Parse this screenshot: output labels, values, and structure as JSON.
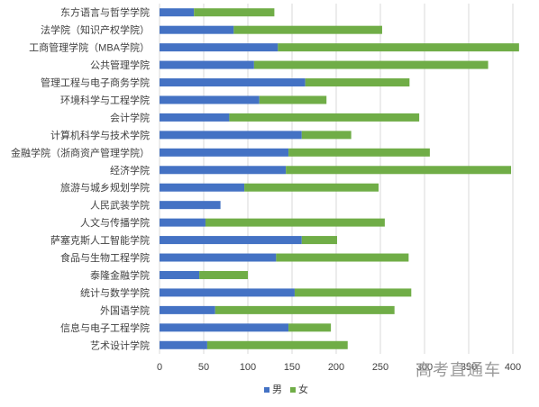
{
  "chart_data": {
    "type": "bar",
    "orientation": "horizontal",
    "stacked": true,
    "categories": [
      "东方语言与哲学学院",
      "法学院（知识产权学院）",
      "工商管理学院（MBA学院）",
      "公共管理学院",
      "管理工程与电子商务学院",
      "环境科学与工程学院",
      "会计学院",
      "计算机科学与技术学院",
      "金融学院（浙商资产管理学院）",
      "经济学院",
      "旅游与城乡规划学院",
      "人民武装学院",
      "人文与传播学院",
      "萨塞克斯人工智能学院",
      "食品与生物工程学院",
      "泰隆金融学院",
      "统计与数学学院",
      "外国语学院",
      "信息与电子工程学院",
      "艺术设计学院"
    ],
    "series": [
      {
        "name": "男",
        "color": "#4472c4",
        "values": [
          39,
          84,
          134,
          107,
          165,
          113,
          79,
          161,
          146,
          143,
          96,
          69,
          52,
          161,
          132,
          45,
          153,
          63,
          146,
          54
        ]
      },
      {
        "name": "女",
        "color": "#70ad47",
        "values": [
          91,
          168,
          273,
          265,
          118,
          76,
          215,
          56,
          160,
          255,
          152,
          0,
          203,
          40,
          150,
          55,
          132,
          203,
          48,
          159
        ]
      }
    ],
    "xlim": [
      0,
      400
    ],
    "xticks": [
      0,
      50,
      100,
      150,
      200,
      250,
      300,
      350,
      400
    ],
    "grid": "vertical",
    "legend_position": "bottom"
  },
  "watermark": "高考直通车"
}
